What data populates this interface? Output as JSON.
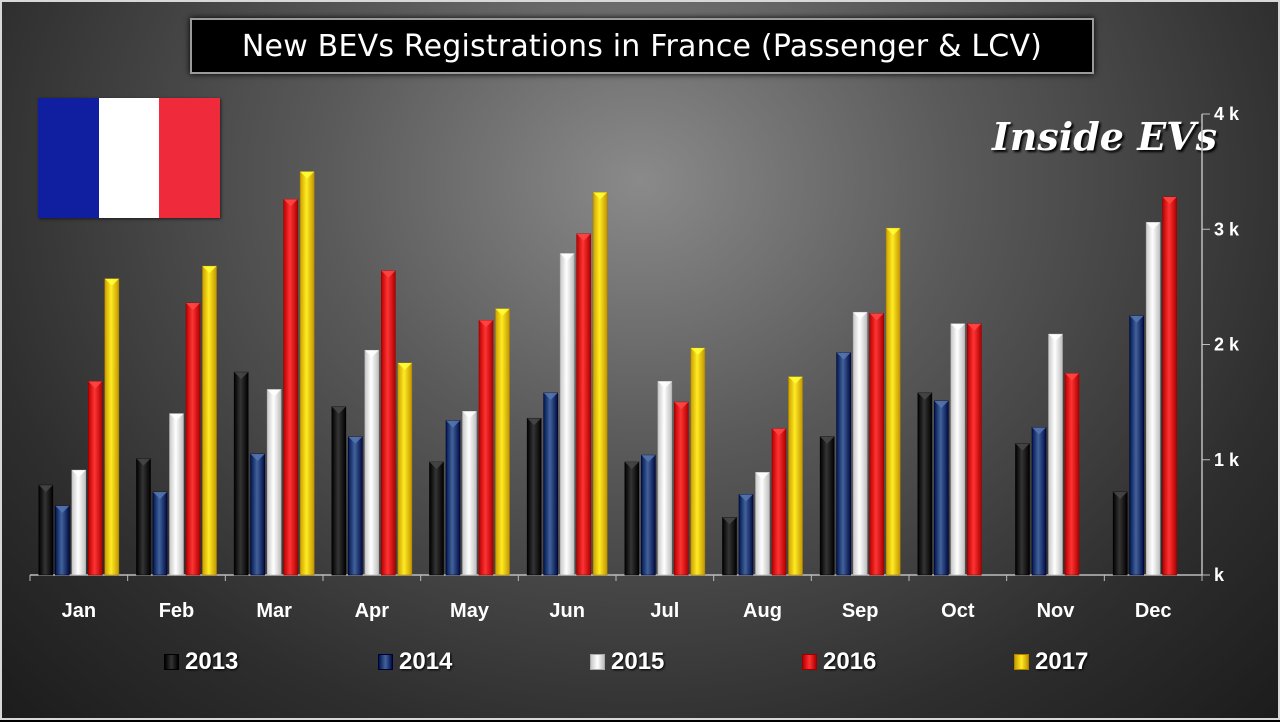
{
  "title": "New BEVs Registrations in France (Passenger & LCV)",
  "brand": "Inside EVs",
  "flag_colors": [
    "#0f1fa0",
    "#ffffff",
    "#ee2a3b"
  ],
  "chart_data": {
    "type": "bar",
    "categories": [
      "Jan",
      "Feb",
      "Mar",
      "Apr",
      "May",
      "Jun",
      "Jul",
      "Aug",
      "Sep",
      "Oct",
      "Nov",
      "Dec"
    ],
    "series": [
      {
        "name": "2013",
        "color": "#111111",
        "values": [
          780,
          1010,
          1760,
          1460,
          980,
          1360,
          980,
          500,
          1200,
          1580,
          1140,
          720
        ]
      },
      {
        "name": "2014",
        "color": "#1f3f78",
        "values": [
          600,
          720,
          1050,
          1200,
          1340,
          1580,
          1040,
          700,
          1930,
          1510,
          1280,
          2250
        ]
      },
      {
        "name": "2015",
        "color": "#f0f0f0",
        "values": [
          910,
          1400,
          1610,
          1950,
          1420,
          2790,
          1680,
          890,
          2280,
          2180,
          2090,
          3060
        ]
      },
      {
        "name": "2016",
        "color": "#e01010",
        "values": [
          1680,
          2360,
          3260,
          2640,
          2210,
          2960,
          1500,
          1270,
          2270,
          2180,
          1750,
          3280
        ]
      },
      {
        "name": "2017",
        "color": "#f5c800",
        "values": [
          2570,
          2680,
          3500,
          1840,
          2310,
          3320,
          1970,
          1720,
          3010,
          null,
          null,
          null
        ]
      }
    ],
    "y_ticks": [
      {
        "value": 0,
        "label": "k"
      },
      {
        "value": 1000,
        "label": "1 k"
      },
      {
        "value": 2000,
        "label": "2 k"
      },
      {
        "value": 3000,
        "label": "3 k"
      },
      {
        "value": 4000,
        "label": "4 k"
      }
    ],
    "ylim": [
      0,
      4000
    ],
    "xlabel": "",
    "ylabel": "",
    "legend_position": "bottom",
    "grid": false
  }
}
